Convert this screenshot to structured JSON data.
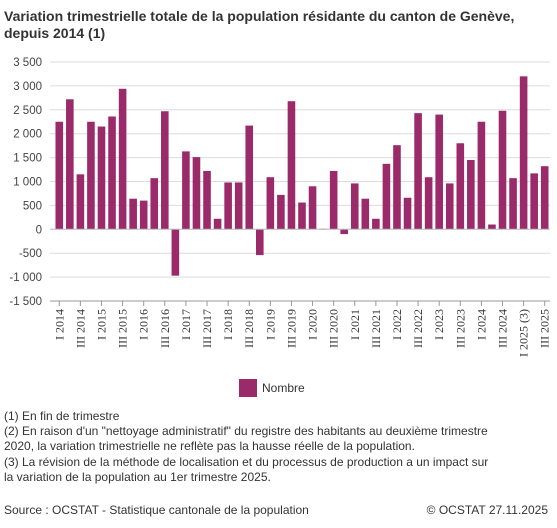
{
  "title_lines": [
    "Variation trimestrielle totale de la population résidante du canton de Genève,",
    "depuis 2014 (1)"
  ],
  "notes": [
    "(1) En fin de trimestre",
    "(2) En raison d'un \"nettoyage administratif\" du registre des habitants au deuxième trimestre",
    "2020, la variation trimestrielle ne reflète pas la hausse réelle de la population.",
    "(3) La révision de la méthode de localisation et du processus de production a un impact sur",
    "la variation de la population au 1er trimestre 2025."
  ],
  "source": "Source : OCSTAT - Statistique cantonale de la population",
  "copyright": "© OCSTAT 27.11.2025",
  "colors": {
    "bar": "#9b2a6a"
  },
  "chart_data": {
    "type": "bar",
    "title": "Variation trimestrielle totale de la population résidante du canton de Genève, depuis 2014 (1)",
    "xlabel": "",
    "ylabel": "",
    "ylim": [
      -1500,
      3500
    ],
    "yticks": [
      -1500,
      -1000,
      -500,
      0,
      500,
      1000,
      1500,
      2000,
      2500,
      3000,
      3500
    ],
    "ytick_labels": [
      "-1 500",
      "-1 000",
      "-500",
      "0",
      "500",
      "1 000",
      "1 500",
      "2 000",
      "2 500",
      "3 000",
      "3 500"
    ],
    "grid": true,
    "legend": "bottom",
    "categories": [
      "I 2014",
      "II 2014",
      "III 2014",
      "IV 2014",
      "I 2015",
      "II 2015",
      "III 2015",
      "IV 2015",
      "I 2016",
      "II 2016",
      "III 2016",
      "IV 2016",
      "I 2017",
      "II 2017",
      "III 2017",
      "IV 2017",
      "I 2018",
      "II 2018",
      "III 2018",
      "IV 2018",
      "I 2019",
      "II 2019",
      "III 2019",
      "IV 2019",
      "I 2020",
      "II 2020",
      "III 2020",
      "IV 2020",
      "I 2021",
      "II 2021",
      "III 2021",
      "IV 2021",
      "I 2022",
      "II 2022",
      "III 2022",
      "IV 2022",
      "I 2023",
      "II 2023",
      "III 2023",
      "IV 2023",
      "I 2024",
      "II 2024",
      "III 2024",
      "IV 2024",
      "I 2025 (3)",
      "II 2025",
      "III 2025"
    ],
    "visible_xtick_labels": [
      "I 2014",
      "III 2014",
      "I 2015",
      "III 2015",
      "I 2016",
      "III 2016",
      "I 2017",
      "III 2017",
      "I 2018",
      "III 2018",
      "I 2019",
      "III 2019",
      "I 2020",
      "III 2020",
      "I 2021",
      "III 2021",
      "I 2022",
      "III 2022",
      "I 2023",
      "III 2023",
      "I 2024",
      "III 2024",
      "I 2025 (3)",
      "III 2025"
    ],
    "series": [
      {
        "name": "Nombre",
        "values": [
          2250,
          2720,
          1150,
          2250,
          2150,
          2360,
          2940,
          640,
          600,
          1070,
          2470,
          -970,
          1630,
          1510,
          1220,
          220,
          980,
          980,
          2170,
          -540,
          1090,
          720,
          2680,
          560,
          900,
          10,
          1220,
          -100,
          960,
          640,
          220,
          1370,
          1760,
          660,
          2430,
          1090,
          2400,
          960,
          1800,
          1450,
          2250,
          100,
          2480,
          1070,
          3200,
          1170,
          1320
        ]
      }
    ]
  }
}
